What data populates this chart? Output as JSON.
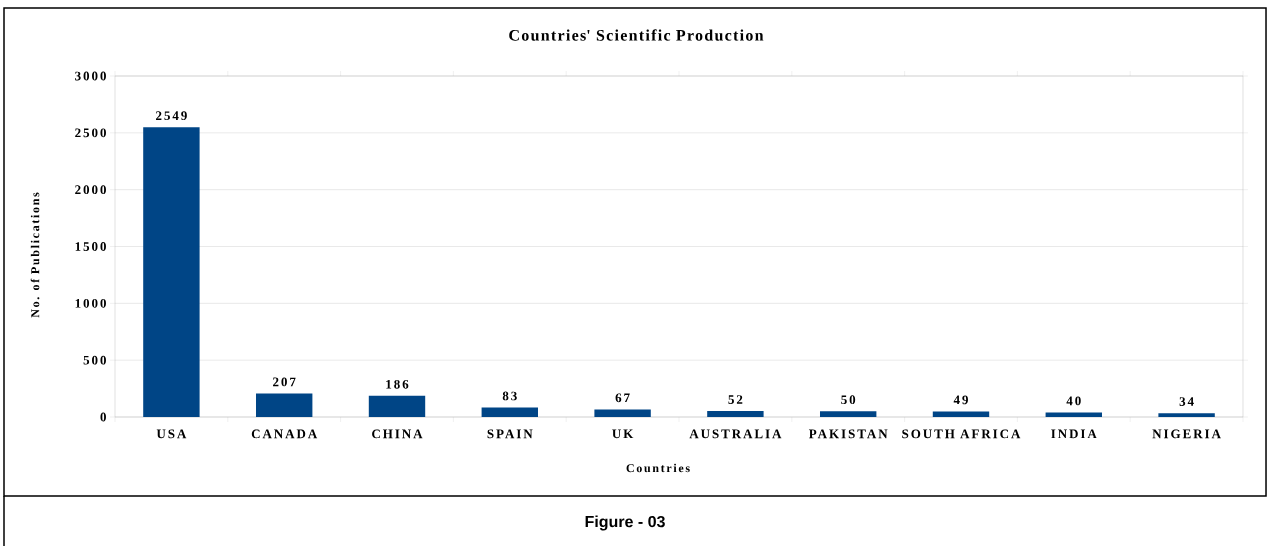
{
  "chart_data": {
    "type": "bar",
    "title": "Countries' Scientific Production",
    "xlabel": "Countries",
    "ylabel": "No. of Publications",
    "categories": [
      "USA",
      "CANADA",
      "CHINA",
      "SPAIN",
      "UK",
      "AUSTRALIA",
      "PAKISTAN",
      "SOUTH AFRICA",
      "INDIA",
      "NIGERIA"
    ],
    "values": [
      2549,
      207,
      186,
      83,
      67,
      52,
      50,
      49,
      40,
      34
    ],
    "color": "#004586",
    "ylim": [
      0,
      3000
    ],
    "yticks": [
      0,
      500,
      1000,
      1500,
      2000,
      2500,
      3000
    ],
    "grid": "y",
    "data_labels": true,
    "annotations": [
      "Figure - 03"
    ]
  }
}
